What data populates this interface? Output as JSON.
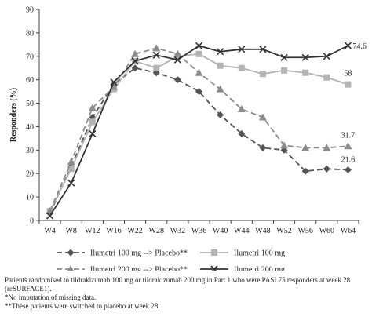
{
  "chart_data": {
    "type": "line",
    "xlabel": "",
    "ylabel": "Responders (%)",
    "categories": [
      "W4",
      "W8",
      "W12",
      "W16",
      "W22",
      "W28",
      "W32",
      "W36",
      "W40",
      "W44",
      "W48",
      "W52",
      "W56",
      "W60",
      "W64"
    ],
    "ylim": [
      0,
      90
    ],
    "yticks": [
      0,
      10,
      20,
      30,
      40,
      50,
      60,
      70,
      80,
      90
    ],
    "grid": false,
    "legend_position": "bottom",
    "series": [
      {
        "name": "Ilumetri 100 mg --> Placebo**",
        "color": "#555555",
        "dash": true,
        "marker": "diamond",
        "values": [
          3,
          23,
          44,
          58,
          65,
          63,
          60,
          55,
          45,
          37,
          31,
          30,
          21,
          22,
          21.6
        ],
        "end_label": "21.6"
      },
      {
        "name": "Ilumetri 100 mg",
        "color": "#b4b4b4",
        "dash": false,
        "marker": "square",
        "values": [
          4,
          22,
          42,
          56,
          68,
          65,
          70,
          71,
          66,
          65,
          62.5,
          64,
          63,
          61,
          58
        ],
        "end_label": "58"
      },
      {
        "name": "Ilumetri 200 mg --> Placebo**",
        "color": "#8c8c8c",
        "dash": true,
        "marker": "triangle",
        "values": [
          4,
          25,
          48,
          57,
          71,
          73.5,
          71,
          63,
          56,
          47.5,
          44,
          32,
          31,
          31,
          31.7
        ],
        "end_label": "31.7"
      },
      {
        "name": "Ilumetri 200 mg",
        "color": "#333333",
        "dash": false,
        "marker": "x",
        "values": [
          2,
          16,
          37,
          59,
          68,
          70.5,
          68.5,
          74.5,
          72,
          73,
          73,
          69.5,
          69.5,
          70,
          74.6
        ],
        "end_label": "74.6"
      }
    ]
  },
  "footnotes": {
    "line1": "Patients randomised to tildrakizumab 100 mg or tildrakizumab 200 mg in Part 1 who were PASI 75 responders at week 28 (reSURFACE1).",
    "line2": "*No imputation of missing data.",
    "line3": "**These patients were switched to placebo at week 28."
  }
}
